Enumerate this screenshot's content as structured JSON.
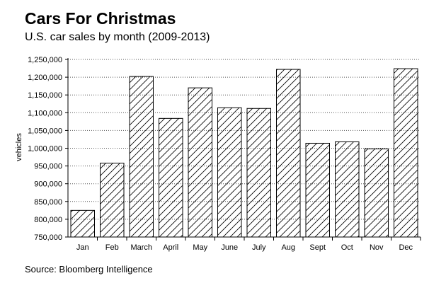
{
  "chart_data": {
    "type": "bar",
    "title": "Cars For Christmas",
    "subtitle": "U.S. car sales by month (2009-2013)",
    "xlabel": "",
    "ylabel": "vehicles",
    "source": "Source: Bloomberg Intelligence",
    "categories": [
      "Jan",
      "Feb",
      "March",
      "April",
      "May",
      "June",
      "July",
      "Aug",
      "Sept",
      "Oct",
      "Nov",
      "Dec"
    ],
    "values": [
      825000,
      958000,
      1202000,
      1084000,
      1170000,
      1114000,
      1112000,
      1222000,
      1014000,
      1018000,
      998000,
      1224000
    ],
    "ylim": [
      750000,
      1250000
    ],
    "yticks": [
      750000,
      800000,
      850000,
      900000,
      950000,
      1000000,
      1050000,
      1100000,
      1150000,
      1200000,
      1250000
    ],
    "ytick_labels": [
      "750,000",
      "800,000",
      "850,000",
      "900,000",
      "950,000",
      "1,000,000",
      "1,050,000",
      "1,100,000",
      "1,150,000",
      "1,200,000",
      "1,250,000"
    ],
    "grid": true,
    "legend": "none",
    "bar_fill": "diagonal-hatch",
    "colors": {
      "bar_stroke": "#000000",
      "bar_fill": "#ffffff",
      "hatch": "#000000",
      "grid": "#555555",
      "axis": "#000000"
    }
  }
}
